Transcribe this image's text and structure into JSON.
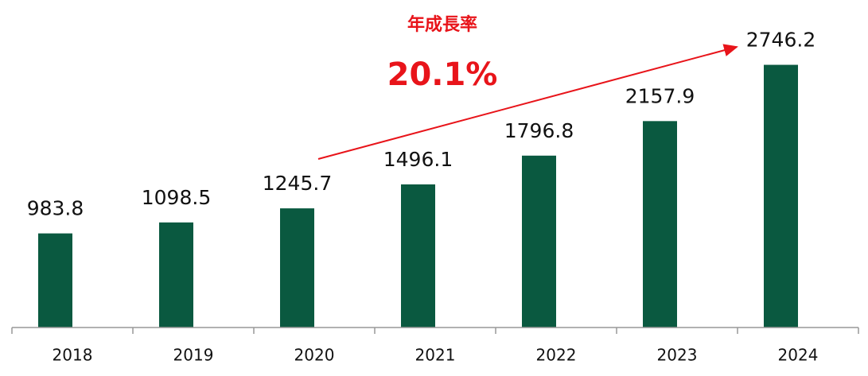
{
  "chart_data": {
    "type": "bar",
    "categories": [
      "2018",
      "2019",
      "2020",
      "2021",
      "2022",
      "2023",
      "2024"
    ],
    "values": [
      983.8,
      1098.5,
      1245.7,
      1496.1,
      1796.8,
      2157.9,
      2746.2
    ],
    "color": "#0a5940",
    "ylim": [
      0,
      3000
    ],
    "annotation": {
      "label": "年成長率",
      "text": "20.1%",
      "color": "#e8141a"
    }
  }
}
